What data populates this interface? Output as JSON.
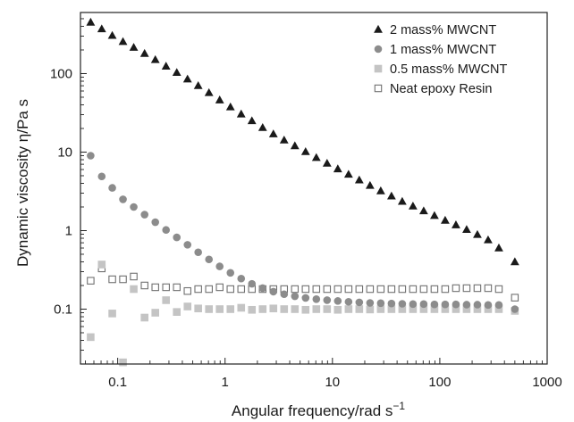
{
  "chart_data": {
    "type": "scatter",
    "x_scale": "log",
    "y_scale": "log",
    "xlim": [
      0.045,
      1000
    ],
    "ylim": [
      0.02,
      600
    ],
    "xlabel": "Angular frequency/rad s",
    "xlabel_sup": "−1",
    "ylabel": "Dynamic viscosity η/Pa s",
    "x_ticks": [
      {
        "value": 0.1,
        "label": "0.1"
      },
      {
        "value": 1,
        "label": "1"
      },
      {
        "value": 10,
        "label": "10"
      },
      {
        "value": 100,
        "label": "100"
      },
      {
        "value": 1000,
        "label": "1000"
      }
    ],
    "y_ticks": [
      {
        "value": 0.1,
        "label": "0.1"
      },
      {
        "value": 1,
        "label": "1"
      },
      {
        "value": 10,
        "label": "10"
      },
      {
        "value": 100,
        "label": "100"
      }
    ],
    "grid": false,
    "legend_position": "top-right",
    "series": [
      {
        "name": "2 mass% MWCNT",
        "marker": "filled-triangle",
        "color": "#1a1a1a",
        "x": [
          0.056,
          0.071,
          0.089,
          0.112,
          0.141,
          0.178,
          0.224,
          0.282,
          0.355,
          0.447,
          0.562,
          0.708,
          0.891,
          1.122,
          1.413,
          1.778,
          2.239,
          2.818,
          3.548,
          4.467,
          5.623,
          7.079,
          8.913,
          11.22,
          14.13,
          17.78,
          22.39,
          28.18,
          35.48,
          44.67,
          56.23,
          70.79,
          89.13,
          112.2,
          141.3,
          177.8,
          223.9,
          281.8,
          354.8,
          500
        ],
        "y": [
          450,
          370,
          305,
          255,
          215,
          180,
          150,
          124,
          103,
          85,
          70,
          57,
          46,
          37.5,
          30.5,
          25,
          20.5,
          17,
          14.2,
          12,
          10.1,
          8.5,
          7.2,
          6.1,
          5.2,
          4.4,
          3.75,
          3.2,
          2.75,
          2.35,
          2.05,
          1.78,
          1.55,
          1.35,
          1.18,
          1.03,
          0.89,
          0.76,
          0.6,
          0.4
        ]
      },
      {
        "name": "1 mass% MWCNT",
        "marker": "filled-circle",
        "color": "#8c8c8c",
        "x": [
          0.056,
          0.071,
          0.089,
          0.112,
          0.141,
          0.178,
          0.224,
          0.282,
          0.355,
          0.447,
          0.562,
          0.708,
          0.891,
          1.122,
          1.413,
          1.778,
          2.239,
          2.818,
          3.548,
          4.467,
          5.623,
          7.079,
          8.913,
          11.22,
          14.13,
          17.78,
          22.39,
          28.18,
          35.48,
          44.67,
          56.23,
          70.79,
          89.13,
          112.2,
          141.3,
          177.8,
          223.9,
          281.8,
          354.8,
          500
        ],
        "y": [
          9,
          4.9,
          3.5,
          2.5,
          2.0,
          1.6,
          1.28,
          1.02,
          0.82,
          0.66,
          0.53,
          0.43,
          0.35,
          0.29,
          0.245,
          0.21,
          0.185,
          0.167,
          0.155,
          0.146,
          0.139,
          0.134,
          0.13,
          0.127,
          0.124,
          0.122,
          0.12,
          0.119,
          0.118,
          0.117,
          0.116,
          0.116,
          0.115,
          0.115,
          0.115,
          0.114,
          0.114,
          0.113,
          0.113,
          0.1
        ]
      },
      {
        "name": "0.5 mass% MWCNT",
        "marker": "filled-square",
        "color": "#c4c4c4",
        "x": [
          0.056,
          0.071,
          0.089,
          0.112,
          0.141,
          0.178,
          0.224,
          0.282,
          0.355,
          0.447,
          0.562,
          0.708,
          0.891,
          1.122,
          1.413,
          1.778,
          2.239,
          2.818,
          3.548,
          4.467,
          5.623,
          7.079,
          8.913,
          11.22,
          14.13,
          17.78,
          22.39,
          28.18,
          35.48,
          44.67,
          56.23,
          70.79,
          89.13,
          112.2,
          141.3,
          177.8,
          223.9,
          281.8,
          354.8,
          500
        ],
        "y": [
          0.044,
          0.37,
          0.088,
          0.021,
          0.18,
          0.078,
          0.09,
          0.13,
          0.092,
          0.108,
          0.102,
          0.1,
          0.1,
          0.1,
          0.104,
          0.098,
          0.1,
          0.102,
          0.1,
          0.1,
          0.098,
          0.1,
          0.1,
          0.098,
          0.1,
          0.1,
          0.099,
          0.1,
          0.1,
          0.1,
          0.1,
          0.1,
          0.1,
          0.1,
          0.1,
          0.1,
          0.1,
          0.1,
          0.1,
          0.095
        ]
      },
      {
        "name": "Neat epoxy Resin",
        "marker": "open-square",
        "color": "#707070",
        "x": [
          0.056,
          0.071,
          0.089,
          0.112,
          0.141,
          0.178,
          0.224,
          0.282,
          0.355,
          0.447,
          0.562,
          0.708,
          0.891,
          1.122,
          1.413,
          1.778,
          2.239,
          2.818,
          3.548,
          4.467,
          5.623,
          7.079,
          8.913,
          11.22,
          14.13,
          17.78,
          22.39,
          28.18,
          35.48,
          44.67,
          56.23,
          70.79,
          89.13,
          112.2,
          141.3,
          177.8,
          223.9,
          281.8,
          354.8,
          500
        ],
        "y": [
          0.23,
          0.33,
          0.24,
          0.24,
          0.26,
          0.2,
          0.19,
          0.19,
          0.19,
          0.17,
          0.18,
          0.18,
          0.19,
          0.18,
          0.18,
          0.18,
          0.18,
          0.18,
          0.18,
          0.18,
          0.18,
          0.18,
          0.18,
          0.18,
          0.18,
          0.18,
          0.18,
          0.18,
          0.18,
          0.18,
          0.18,
          0.18,
          0.18,
          0.18,
          0.185,
          0.185,
          0.185,
          0.185,
          0.18,
          0.14
        ]
      }
    ]
  }
}
